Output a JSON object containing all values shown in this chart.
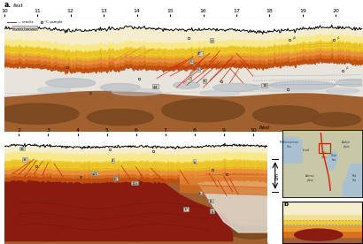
{
  "background_color": "#ffffff",
  "fig_label_a": "a.",
  "fig_label_trench": "fast",
  "fig_label_rest": "Rest",
  "top_panel": {
    "x_ticks": [
      20,
      19,
      18,
      17,
      16,
      15,
      14,
      13,
      12,
      11,
      10
    ],
    "xlim": [
      10.0,
      20.8
    ],
    "colors": {
      "white_bg": "#ffffff",
      "cream": "#f5edcc",
      "pale_yellow": "#f7e98a",
      "yellow": "#f0cc30",
      "yellow2": "#e8b820",
      "orange_light": "#e8903c",
      "orange": "#d87020",
      "orange_dark": "#c05010",
      "red_orange": "#b83010",
      "white_zone": "#e8e4dc",
      "gray_zone": "#c8c4b8",
      "blue_gray": "#b0bac4",
      "brown_light": "#c08040",
      "brown_mid": "#a06030",
      "brown_dark": "#7a4820",
      "brown_darker": "#5a3010"
    }
  },
  "bottom_panel": {
    "x_ticks": [
      10,
      9,
      8,
      7,
      6,
      5,
      4,
      3,
      2
    ],
    "xlim": [
      1.5,
      10.5
    ],
    "colors": {
      "dark_red": "#7a1408",
      "dark_red2": "#8b1a10",
      "brown_surround": "#a06030",
      "orange_layer": "#d87020"
    }
  },
  "legend": {
    "cracks_color": "#cc2200",
    "event_color": "#909090"
  },
  "inset_map": {
    "land_color": "#c8c8a8",
    "sea_color": "#a8c0d0",
    "fault_color": "#cc2200",
    "box_color": "#cc2200",
    "text_color": "#333333"
  },
  "inset_b": {
    "cream": "#f5edcc",
    "yellow": "#f0cc30",
    "orange": "#d87020",
    "brown": "#a06030",
    "dark_red": "#8b1a10",
    "blue_line": "#8090b0"
  }
}
